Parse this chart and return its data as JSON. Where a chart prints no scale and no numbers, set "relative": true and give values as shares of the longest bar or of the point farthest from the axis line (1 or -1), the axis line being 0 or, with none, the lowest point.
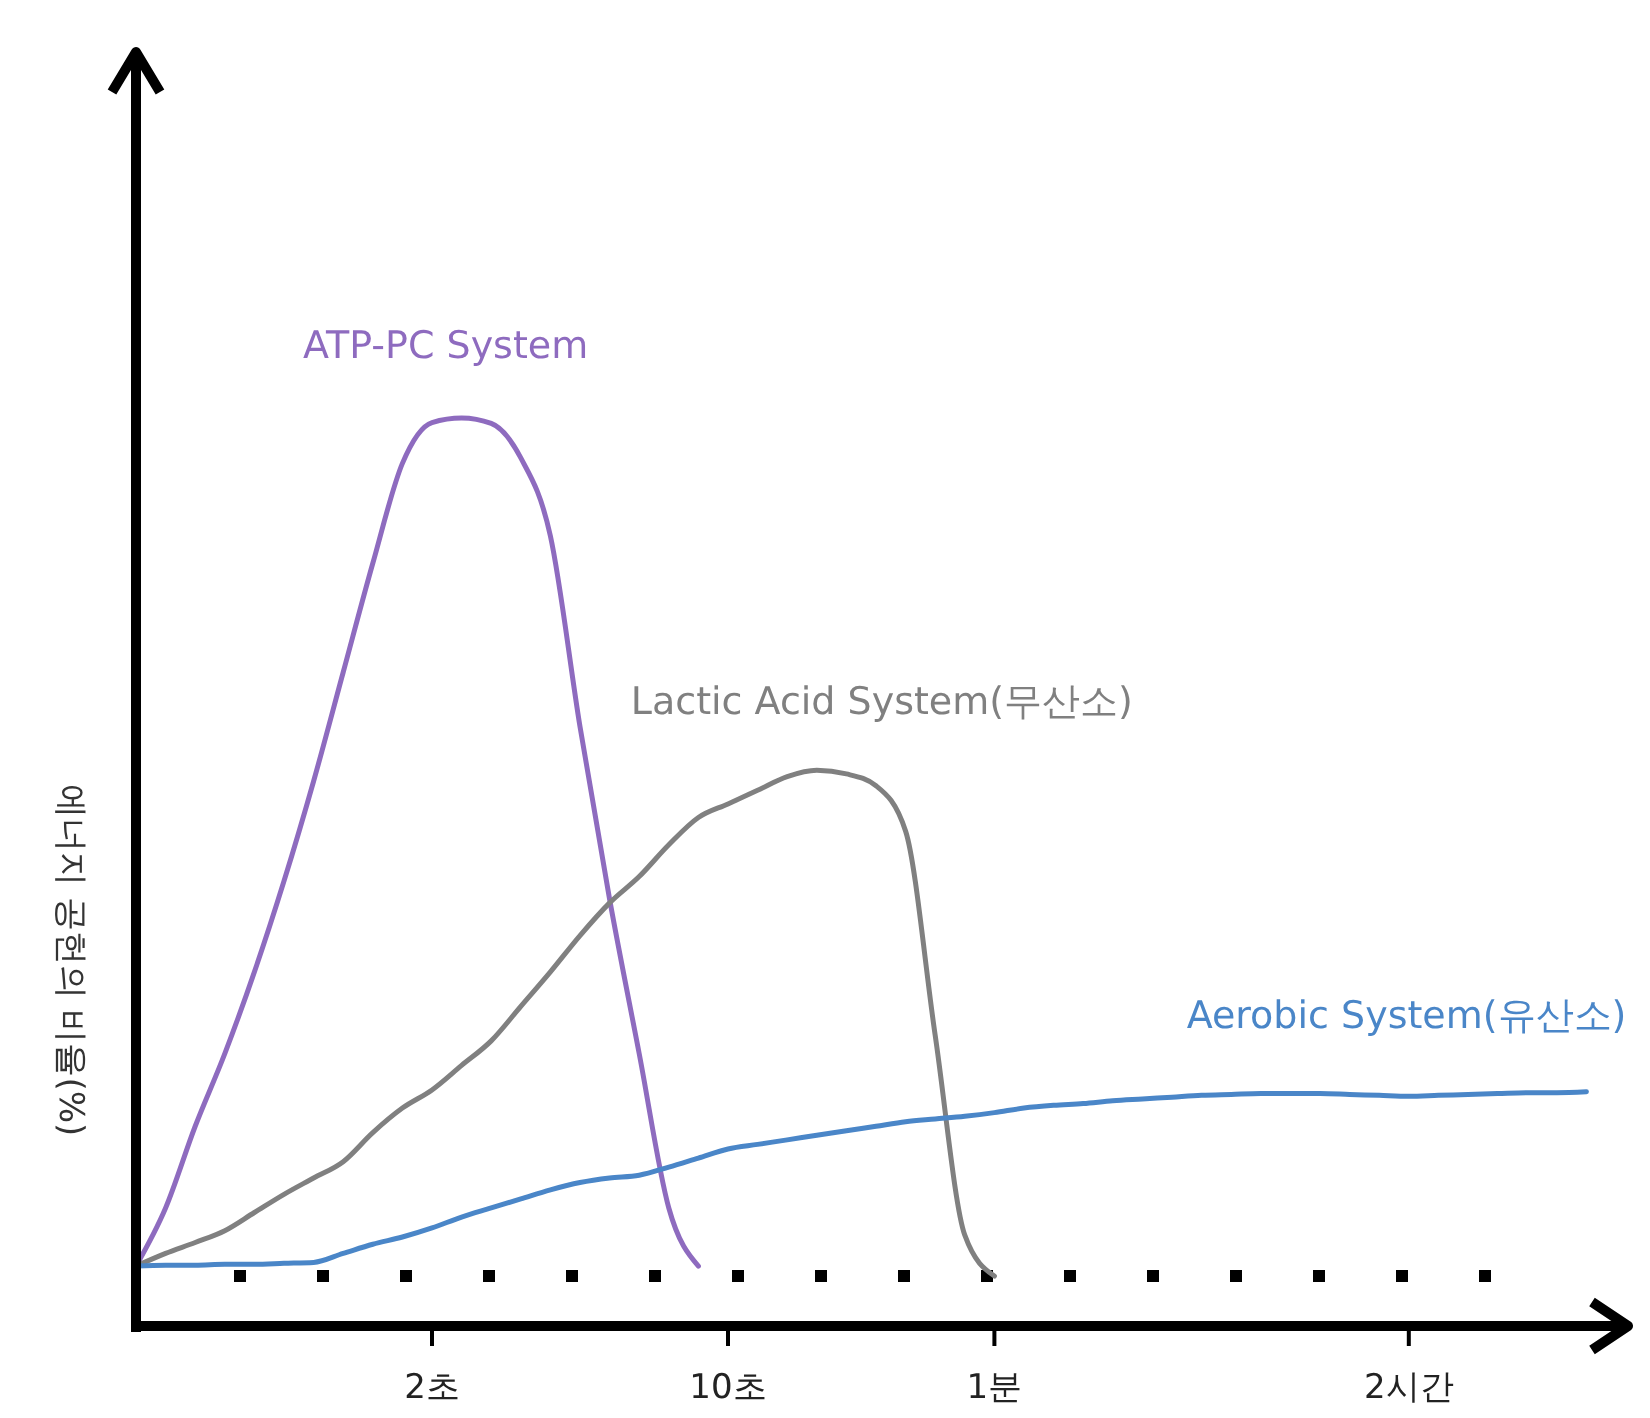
{
  "chart_data": {
    "type": "line",
    "relative": true,
    "ylabel": "에너지 공헌의 비율(%)",
    "categories": [
      null,
      null,
      null,
      null,
      null,
      null,
      null,
      null,
      null,
      null,
      "2초",
      null,
      null,
      null,
      null,
      null,
      null,
      null,
      null,
      null,
      "10초",
      null,
      null,
      null,
      null,
      null,
      null,
      null,
      null,
      "1분",
      null,
      null,
      null,
      null,
      null,
      null,
      null,
      null,
      null,
      null,
      null,
      null,
      null,
      "2시간",
      null,
      null,
      null,
      null,
      null,
      null,
      null
    ],
    "series": [
      {
        "name": "ATP-PC System",
        "color": "#8e6bbf",
        "values": [
          0.066,
          0.13,
          0.22,
          0.3,
          0.39,
          0.49,
          0.6,
          0.72,
          0.84,
          0.95,
          0.995,
          1,
          0.994,
          0.956,
          0.87,
          0.66,
          0.47,
          0.3,
          0.13,
          0.066,
          null,
          null,
          null,
          null,
          null,
          null,
          null,
          null,
          null,
          null,
          null,
          null,
          null,
          null,
          null,
          null,
          null,
          null,
          null,
          null,
          null,
          null,
          null,
          null,
          null,
          null,
          null,
          null,
          null,
          null,
          null
        ]
      },
      {
        "name": "Lactic Acid System(무산소)",
        "color": "#808080",
        "values": [
          0.066,
          0.08,
          0.092,
          0.105,
          0.125,
          0.145,
          0.163,
          0.181,
          0.213,
          0.24,
          0.26,
          0.287,
          0.314,
          0.352,
          0.39,
          0.43,
          0.466,
          0.495,
          0.53,
          0.56,
          0.575,
          0.59,
          0.605,
          0.612,
          0.608,
          0.595,
          0.545,
          0.32,
          0.1,
          0.055,
          null,
          null,
          null,
          null,
          null,
          null,
          null,
          null,
          null,
          null,
          null,
          null,
          null,
          null,
          null,
          null,
          null,
          null,
          null,
          null,
          null
        ]
      },
      {
        "name": "Aerobic System(유산소)",
        "color": "#4a86c8",
        "values": [
          0.066,
          0.067,
          0.067,
          0.068,
          0.068,
          0.069,
          0.07,
          0.08,
          0.09,
          0.098,
          0.108,
          0.12,
          0.13,
          0.14,
          0.15,
          0.158,
          0.163,
          0.166,
          0.175,
          0.185,
          0.195,
          0.2,
          0.205,
          0.21,
          0.215,
          0.22,
          0.225,
          0.228,
          0.231,
          0.235,
          0.24,
          0.243,
          0.245,
          0.248,
          0.25,
          0.252,
          0.254,
          0.255,
          0.256,
          0.256,
          0.256,
          0.255,
          0.254,
          0.253,
          0.254,
          0.255,
          0.256,
          0.257,
          0.257,
          0.258,
          null
        ]
      }
    ]
  }
}
